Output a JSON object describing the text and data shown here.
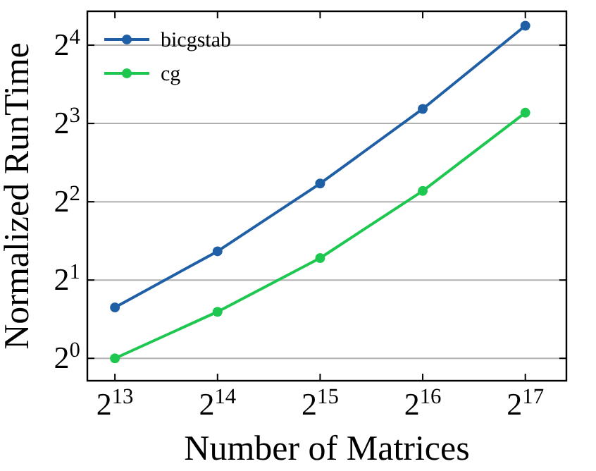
{
  "chart_data": {
    "type": "line",
    "xlabel": "Number of Matrices",
    "ylabel": "Normalized RunTime",
    "log": "xy",
    "grid": "y",
    "legend": "top left",
    "marker": "circle",
    "line_style": "solid",
    "x": [
      8192,
      16384,
      32768,
      65536,
      131072
    ],
    "xlim": [
      6800,
      173000
    ],
    "ylim": [
      0.82,
      21.6
    ],
    "xticks": [
      {
        "value": 8192,
        "label": "2$^{13}$"
      },
      {
        "value": 16384,
        "label": "2$^{14}$"
      },
      {
        "value": 32768,
        "label": "2$^{15}$"
      },
      {
        "value": 65536,
        "label": "2$^{16}$"
      },
      {
        "value": 131072,
        "label": "2$^{17}$"
      }
    ],
    "yticks": [
      {
        "value": 1,
        "label": "2$^{0}$"
      },
      {
        "value": 2,
        "label": "2$^{1}$"
      },
      {
        "value": 4,
        "label": "2$^{2}$"
      },
      {
        "value": 8,
        "label": "2$^{3}$"
      },
      {
        "value": 16,
        "label": "2$^{4}$"
      }
    ],
    "series": [
      {
        "name": "bicgstab",
        "color": "#1f5fa6",
        "values": [
          1.57,
          2.58,
          4.7,
          9.1,
          19
        ]
      },
      {
        "name": "cg",
        "color": "#1ec850",
        "values": [
          1,
          1.51,
          2.43,
          4.4,
          8.8
        ]
      }
    ]
  }
}
